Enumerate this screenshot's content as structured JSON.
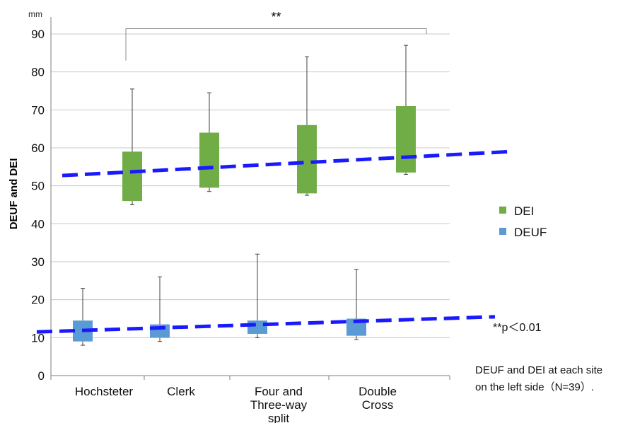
{
  "chart_data": {
    "type": "box",
    "unit_label": "mm",
    "ylabel": "DEUF and DEI",
    "ylim": [
      0,
      90
    ],
    "yticks": [
      0,
      10,
      20,
      30,
      40,
      50,
      60,
      70,
      80,
      90
    ],
    "grid": true,
    "categories": [
      [
        "Hochsteter"
      ],
      [
        "Clerk"
      ],
      [
        "Four and",
        "Three-way",
        "split"
      ],
      [
        "Double",
        "Cross"
      ]
    ],
    "series": [
      {
        "name": "DEI",
        "color": "#70ad47",
        "boxes": [
          {
            "min": 45,
            "q1": 46,
            "q3": 59,
            "max": 75.5
          },
          {
            "min": 48.5,
            "q1": 49.5,
            "q3": 64,
            "max": 74.5
          },
          {
            "min": 47.5,
            "q1": 48,
            "q3": 66,
            "max": 84
          },
          {
            "min": 53,
            "q1": 53.5,
            "q3": 71,
            "max": 87
          }
        ],
        "trend": [
          52.7,
          59
        ]
      },
      {
        "name": "DEUF",
        "color": "#5b9bd5",
        "boxes": [
          {
            "min": 8,
            "q1": 9,
            "q3": 14.5,
            "max": 23
          },
          {
            "min": 9,
            "q1": 10,
            "q3": 13.5,
            "max": 26
          },
          {
            "min": 10,
            "q1": 11,
            "q3": 14.5,
            "max": 32
          },
          {
            "min": 9.5,
            "q1": 10.5,
            "q3": 15,
            "max": 28
          }
        ],
        "trend": [
          11.5,
          15.5
        ]
      }
    ],
    "trend_color": "#1a1aff",
    "significance": {
      "label": "**",
      "from": 0,
      "to": 3,
      "y": 91.5,
      "left_drop": 83,
      "right_drop": 90
    },
    "legend": {
      "placement": "right"
    },
    "annotations": {
      "p_value": "**p＜0.01",
      "caption_line1": "DEUF and DEI at each site",
      "caption_line2": "on the left side（N=39）."
    }
  }
}
